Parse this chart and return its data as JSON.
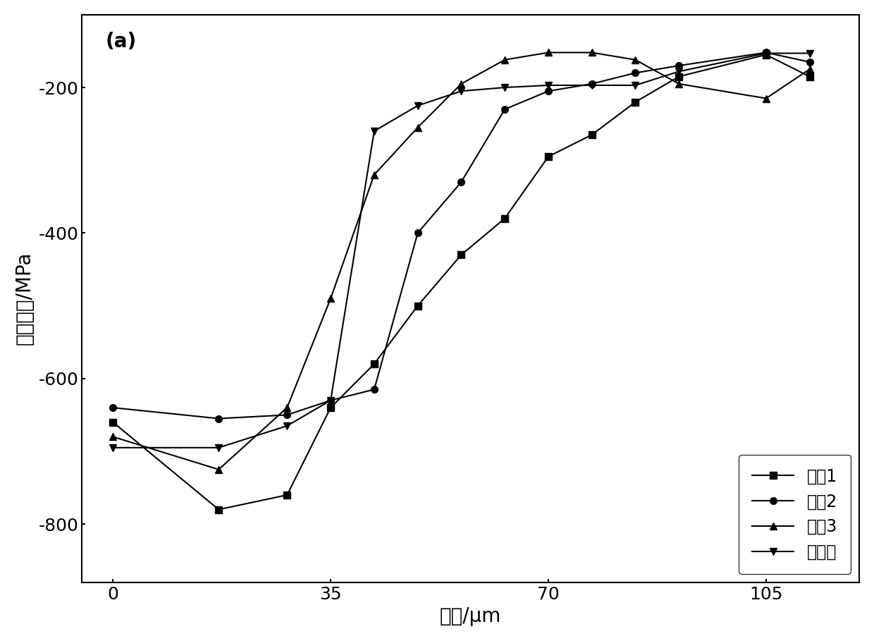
{
  "series": [
    {
      "label": "工艺1",
      "marker": "s",
      "markersize": 7,
      "x": [
        0,
        17,
        28,
        35,
        42,
        49,
        56,
        63,
        70,
        77,
        84,
        91,
        105,
        112
      ],
      "y": [
        -660,
        -780,
        -760,
        -640,
        -580,
        -500,
        -430,
        -380,
        -295,
        -265,
        -220,
        -185,
        -155,
        -185
      ]
    },
    {
      "label": "工艺2",
      "marker": "o",
      "markersize": 7,
      "x": [
        0,
        17,
        28,
        35,
        42,
        49,
        56,
        63,
        70,
        77,
        84,
        91,
        105,
        112
      ],
      "y": [
        -640,
        -655,
        -650,
        -630,
        -615,
        -400,
        -330,
        -230,
        -205,
        -195,
        -180,
        -170,
        -152,
        -165
      ]
    },
    {
      "label": "工艺3",
      "marker": "^",
      "markersize": 7,
      "x": [
        0,
        17,
        28,
        35,
        42,
        49,
        56,
        63,
        70,
        77,
        84,
        91,
        105,
        112
      ],
      "y": [
        -680,
        -725,
        -640,
        -490,
        -320,
        -255,
        -195,
        -162,
        -152,
        -152,
        -162,
        -195,
        -215,
        -175
      ]
    },
    {
      "label": "未处理",
      "marker": "v",
      "markersize": 7,
      "x": [
        0,
        17,
        28,
        35,
        42,
        49,
        56,
        63,
        70,
        77,
        84,
        91,
        105,
        112
      ],
      "y": [
        -695,
        -695,
        -665,
        -630,
        -260,
        -225,
        -205,
        -200,
        -197,
        -197,
        -197,
        -178,
        -153,
        -153
      ]
    }
  ],
  "xlabel": "深度/μm",
  "ylabel": "残余应力/MPa",
  "xlim": [
    -5,
    120
  ],
  "ylim": [
    -880,
    -100
  ],
  "xticks": [
    0,
    35,
    70,
    105
  ],
  "yticks": [
    -800,
    -600,
    -400,
    -200
  ],
  "annotation": "(a)",
  "background_color": "#ffffff",
  "line_color": "#000000",
  "legend_loc": "lower right",
  "tick_fontsize": 18,
  "label_fontsize": 20,
  "legend_fontsize": 17
}
